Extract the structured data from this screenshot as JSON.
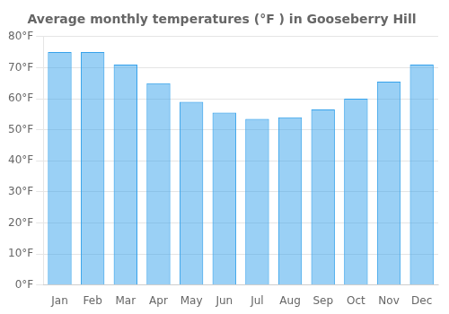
{
  "chart_data": {
    "type": "bar",
    "title": "Average monthly temperatures (°F ) in Gooseberry Hill",
    "categories": [
      "Jan",
      "Feb",
      "Mar",
      "Apr",
      "May",
      "Jun",
      "Jul",
      "Aug",
      "Sep",
      "Oct",
      "Nov",
      "Dec"
    ],
    "values": [
      75,
      75,
      71,
      65,
      59,
      55.5,
      53.5,
      54,
      56.5,
      60,
      65.5,
      71
    ],
    "ylim": [
      0,
      80
    ],
    "yticks": [
      {
        "value": 0,
        "label": "0°F"
      },
      {
        "value": 10,
        "label": "10°F"
      },
      {
        "value": 20,
        "label": "20°F"
      },
      {
        "value": 30,
        "label": "30°F"
      },
      {
        "value": 40,
        "label": "40°F"
      },
      {
        "value": 50,
        "label": "50°F"
      },
      {
        "value": 60,
        "label": "60°F"
      },
      {
        "value": 70,
        "label": "70°F"
      },
      {
        "value": 80,
        "label": "80°F"
      }
    ],
    "grid": true
  }
}
